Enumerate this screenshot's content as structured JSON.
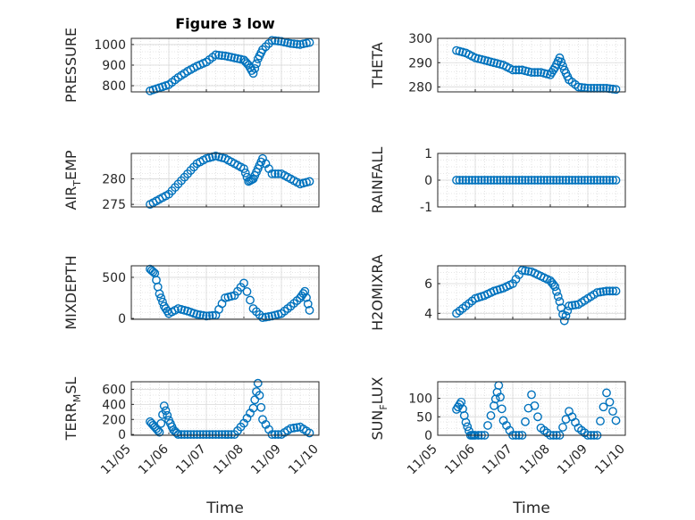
{
  "figure_title": "Figure 3 low",
  "x_axis_label": "Time",
  "marker_color": "#0072BD",
  "chart_data": [
    {
      "type": "scatter",
      "ylabel": "PRESSURE",
      "ylabel_sub": "",
      "ylabel_post": "",
      "ylim": [
        770,
        1030
      ],
      "yticks": [
        "800",
        "900",
        "1000"
      ],
      "grid": true,
      "legend": "none",
      "x": [
        "11/05 12:00",
        "11/05 18:00",
        "11/06 00:00",
        "11/06 06:00",
        "11/06 12:00",
        "11/06 18:00",
        "11/07 00:00",
        "11/07 06:00",
        "11/07 12:00",
        "11/07 18:00",
        "11/08 00:00",
        "11/08 03:00",
        "11/08 06:00",
        "11/08 09:00",
        "11/08 12:00",
        "11/08 18:00",
        "11/09 00:00",
        "11/09 06:00",
        "11/09 12:00",
        "11/09 18:00"
      ],
      "y": [
        775,
        790,
        805,
        840,
        870,
        895,
        915,
        950,
        945,
        935,
        925,
        900,
        860,
        930,
        975,
        1020,
        1015,
        1005,
        1000,
        1010
      ]
    },
    {
      "type": "scatter",
      "ylabel": "THETA",
      "ylabel_sub": "",
      "ylabel_post": "",
      "ylim": [
        278,
        300
      ],
      "yticks": [
        "280",
        "290",
        "300"
      ],
      "grid": true,
      "legend": "none",
      "x": [
        "11/05 12:00",
        "11/05 18:00",
        "11/06 00:00",
        "11/06 06:00",
        "11/06 12:00",
        "11/06 18:00",
        "11/07 00:00",
        "11/07 06:00",
        "11/07 12:00",
        "11/07 18:00",
        "11/08 00:00",
        "11/08 03:00",
        "11/08 06:00",
        "11/08 09:00",
        "11/08 12:00",
        "11/08 18:00",
        "11/09 00:00",
        "11/09 06:00",
        "11/09 12:00",
        "11/09 18:00"
      ],
      "y": [
        295,
        294,
        292,
        291,
        290,
        289,
        287,
        287,
        286,
        286,
        285,
        288,
        292,
        287,
        283,
        280,
        279.5,
        279.5,
        279.5,
        279
      ]
    },
    {
      "type": "scatter",
      "ylabel": "AIR",
      "ylabel_sub": "T",
      "ylabel_post": "EMP",
      "ylim": [
        274.5,
        285
      ],
      "yticks": [
        "275",
        "280"
      ],
      "grid": true,
      "legend": "none",
      "x": [
        "11/05 12:00",
        "11/05 18:00",
        "11/06 00:00",
        "11/06 06:00",
        "11/06 12:00",
        "11/06 18:00",
        "11/07 00:00",
        "11/07 06:00",
        "11/07 12:00",
        "11/07 18:00",
        "11/08 00:00",
        "11/08 03:00",
        "11/08 06:00",
        "11/08 09:00",
        "11/08 12:00",
        "11/08 18:00",
        "11/09 00:00",
        "11/09 06:00",
        "11/09 12:00",
        "11/09 18:00"
      ],
      "y": [
        275,
        276,
        277,
        279,
        281,
        283,
        284,
        284.5,
        284,
        283,
        282,
        279.5,
        280,
        282,
        284,
        281,
        281,
        280,
        279,
        279.5
      ]
    },
    {
      "type": "scatter",
      "ylabel": "RAINFALL",
      "ylabel_sub": "",
      "ylabel_post": "",
      "ylim": [
        -1,
        1
      ],
      "yticks": [
        "-1",
        "0",
        "1"
      ],
      "grid": true,
      "legend": "none",
      "x": [
        "11/05 12:00",
        "11/05 18:00",
        "11/06 00:00",
        "11/06 06:00",
        "11/06 12:00",
        "11/06 18:00",
        "11/07 00:00",
        "11/07 06:00",
        "11/07 12:00",
        "11/07 18:00",
        "11/08 00:00",
        "11/08 06:00",
        "11/08 12:00",
        "11/08 18:00",
        "11/09 00:00",
        "11/09 06:00",
        "11/09 12:00",
        "11/09 18:00"
      ],
      "y": [
        0,
        0,
        0,
        0,
        0,
        0,
        0,
        0,
        0,
        0,
        0,
        0,
        0,
        0,
        0,
        0,
        0,
        0
      ]
    },
    {
      "type": "scatter",
      "ylabel": "MIXDEPTH",
      "ylabel_sub": "",
      "ylabel_post": "",
      "ylim": [
        -10,
        640
      ],
      "yticks": [
        "0",
        "500"
      ],
      "grid": true,
      "legend": "none",
      "x": [
        "11/05 12:00",
        "11/05 15:00",
        "11/05 18:00",
        "11/05 21:00",
        "11/06 00:00",
        "11/06 06:00",
        "11/06 12:00",
        "11/06 18:00",
        "11/07 00:00",
        "11/07 06:00",
        "11/07 12:00",
        "11/07 18:00",
        "11/08 00:00",
        "11/08 06:00",
        "11/08 12:00",
        "11/08 18:00",
        "11/09 00:00",
        "11/09 06:00",
        "11/09 12:00",
        "11/09 15:00",
        "11/09 18:00"
      ],
      "y": [
        600,
        550,
        300,
        150,
        60,
        120,
        90,
        50,
        30,
        40,
        250,
        280,
        430,
        120,
        10,
        30,
        60,
        150,
        250,
        330,
        100
      ]
    },
    {
      "type": "scatter",
      "ylabel": "H2OMIXRA",
      "ylabel_sub": "",
      "ylabel_post": "",
      "ylim": [
        3.6,
        7.2
      ],
      "yticks": [
        "4",
        "6"
      ],
      "grid": true,
      "legend": "none",
      "x": [
        "11/05 12:00",
        "11/05 18:00",
        "11/06 00:00",
        "11/06 06:00",
        "11/06 12:00",
        "11/06 18:00",
        "11/07 00:00",
        "11/07 06:00",
        "11/07 12:00",
        "11/07 18:00",
        "11/08 00:00",
        "11/08 03:00",
        "11/08 06:00",
        "11/08 09:00",
        "11/08 12:00",
        "11/08 18:00",
        "11/09 00:00",
        "11/09 06:00",
        "11/09 12:00",
        "11/09 18:00"
      ],
      "y": [
        4,
        4.5,
        5,
        5.2,
        5.5,
        5.7,
        6,
        6.9,
        6.8,
        6.5,
        6.2,
        5.8,
        4.8,
        3.5,
        4.5,
        4.6,
        5,
        5.4,
        5.5,
        5.5
      ]
    },
    {
      "type": "scatter",
      "ylabel": "TERR",
      "ylabel_sub": "M",
      "ylabel_post": "SL",
      "ylim": [
        -10,
        700
      ],
      "yticks": [
        "0",
        "200",
        "400",
        "600"
      ],
      "grid": true,
      "legend": "none",
      "x": [
        "11/05 12:00",
        "11/05 15:00",
        "11/05 18:00",
        "11/05 21:00",
        "11/06 00:00",
        "11/06 03:00",
        "11/06 06:00",
        "11/06 12:00",
        "11/06 18:00",
        "11/07 00:00",
        "11/07 06:00",
        "11/07 12:00",
        "11/07 18:00",
        "11/08 00:00",
        "11/08 06:00",
        "11/08 09:00",
        "11/08 12:00",
        "11/08 18:00",
        "11/09 00:00",
        "11/09 06:00",
        "11/09 12:00",
        "11/09 18:00"
      ],
      "y": [
        170,
        100,
        30,
        380,
        190,
        60,
        0,
        0,
        0,
        0,
        0,
        0,
        0,
        150,
        350,
        680,
        200,
        0,
        0,
        80,
        100,
        20
      ]
    },
    {
      "type": "scatter",
      "ylabel": "SUN",
      "ylabel_sub": "F",
      "ylabel_post": "LUX",
      "ylim": [
        0,
        145
      ],
      "yticks": [
        "0",
        "50",
        "100"
      ],
      "grid": true,
      "legend": "none",
      "x": [
        "11/05 12:00",
        "11/05 15:00",
        "11/05 18:00",
        "11/05 21:00",
        "11/06 00:00",
        "11/06 06:00",
        "11/06 12:00",
        "11/06 15:00",
        "11/06 18:00",
        "11/07 00:00",
        "11/07 06:00",
        "11/07 12:00",
        "11/07 18:00",
        "11/08 00:00",
        "11/08 06:00",
        "11/08 12:00",
        "11/08 18:00",
        "11/09 00:00",
        "11/09 06:00",
        "11/09 12:00",
        "11/09 18:00"
      ],
      "y": [
        70,
        90,
        35,
        0,
        0,
        0,
        80,
        135,
        40,
        0,
        0,
        110,
        20,
        0,
        0,
        65,
        20,
        0,
        0,
        115,
        40
      ]
    }
  ],
  "x_tick_labels": [
    "11/05",
    "11/06",
    "11/07",
    "11/08",
    "11/09",
    "11/10"
  ],
  "x_range": [
    "11/05 00:00",
    "11/10 00:00"
  ]
}
